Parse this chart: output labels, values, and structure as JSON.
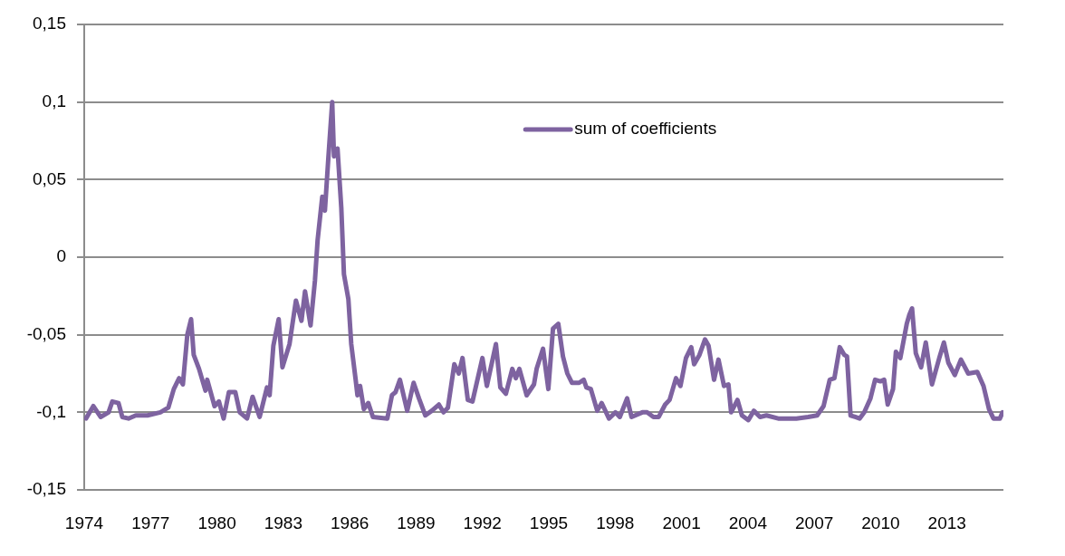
{
  "chart_data": {
    "type": "line",
    "xlim": [
      1974,
      2015.55
    ],
    "xticks": [
      1974,
      1977,
      1980,
      1983,
      1986,
      1989,
      1992,
      1995,
      1998,
      2001,
      2004,
      2007,
      2010,
      2013
    ],
    "ylim": [
      -0.15,
      0.15
    ],
    "yticks": [
      {
        "value": -0.15,
        "label": "-0,15"
      },
      {
        "value": -0.1,
        "label": "-0,1"
      },
      {
        "value": -0.05,
        "label": "-0,05"
      },
      {
        "value": 0,
        "label": "0"
      },
      {
        "value": 0.05,
        "label": "0,05"
      },
      {
        "value": 0.1,
        "label": "0,1"
      },
      {
        "value": 0.15,
        "label": "0,15"
      }
    ],
    "grid": "y",
    "legend": "top right",
    "marker": "none",
    "line_style": "solid",
    "series": [
      {
        "name": "sum of coefficients",
        "color": "#7e63a0",
        "x": [
          1974.08,
          1974.41,
          1974.74,
          1975.1,
          1975.27,
          1975.55,
          1975.72,
          1976.0,
          1976.33,
          1976.86,
          1977.44,
          1977.8,
          1978.05,
          1978.29,
          1978.46,
          1978.66,
          1978.83,
          1978.95,
          1979.19,
          1979.48,
          1979.56,
          1979.89,
          1980.09,
          1980.3,
          1980.54,
          1980.83,
          1981.03,
          1981.36,
          1981.61,
          1981.93,
          1982.26,
          1982.38,
          1982.55,
          1982.79,
          1982.96,
          1983.28,
          1983.57,
          1983.82,
          1983.98,
          1984.23,
          1984.43,
          1984.55,
          1984.76,
          1984.88,
          1985.04,
          1985.21,
          1985.29,
          1985.45,
          1985.62,
          1985.74,
          1985.94,
          1986.07,
          1986.27,
          1986.35,
          1986.47,
          1986.64,
          1986.84,
          1987.05,
          1987.7,
          1987.91,
          1988.07,
          1988.27,
          1988.6,
          1988.89,
          1989.13,
          1989.42,
          1989.71,
          1990.03,
          1990.24,
          1990.44,
          1990.73,
          1990.93,
          1991.1,
          1991.34,
          1991.55,
          1992.0,
          1992.2,
          1992.61,
          1992.81,
          1993.06,
          1993.35,
          1993.51,
          1993.67,
          1994.0,
          1994.33,
          1994.45,
          1994.74,
          1994.98,
          1995.19,
          1995.43,
          1995.64,
          1995.84,
          1996.05,
          1996.37,
          1996.58,
          1996.7,
          1996.9,
          1997.19,
          1997.39,
          1997.72,
          1998.01,
          1998.21,
          1998.54,
          1998.74,
          1999.23,
          1999.44,
          1999.73,
          1999.97,
          2000.26,
          2000.46,
          2000.75,
          2000.95,
          2001.2,
          2001.44,
          2001.57,
          2001.81,
          2002.06,
          2002.22,
          2002.47,
          2002.67,
          2002.92,
          2003.12,
          2003.24,
          2003.53,
          2003.73,
          2004.02,
          2004.27,
          2004.55,
          2004.84,
          2005.37,
          2006.19,
          2006.72,
          2007.13,
          2007.42,
          2007.7,
          2007.91,
          2008.15,
          2008.36,
          2008.48,
          2008.64,
          2008.85,
          2009.05,
          2009.26,
          2009.54,
          2009.75,
          2009.99,
          2010.16,
          2010.32,
          2010.56,
          2010.69,
          2010.89,
          2011.18,
          2011.3,
          2011.42,
          2011.59,
          2011.83,
          2012.04,
          2012.32,
          2012.65,
          2012.86,
          2013.06,
          2013.35,
          2013.63,
          2013.96,
          2014.37,
          2014.65,
          2014.9,
          2015.1,
          2015.39,
          2015.51
        ],
        "values": [
          -0.104,
          -0.096,
          -0.103,
          -0.1,
          -0.093,
          -0.094,
          -0.103,
          -0.104,
          -0.102,
          -0.102,
          -0.1,
          -0.097,
          -0.085,
          -0.078,
          -0.082,
          -0.05,
          -0.04,
          -0.063,
          -0.072,
          -0.086,
          -0.079,
          -0.096,
          -0.093,
          -0.104,
          -0.087,
          -0.087,
          -0.1,
          -0.104,
          -0.09,
          -0.103,
          -0.084,
          -0.089,
          -0.057,
          -0.04,
          -0.071,
          -0.056,
          -0.028,
          -0.041,
          -0.022,
          -0.044,
          -0.015,
          0.011,
          0.039,
          0.03,
          0.065,
          0.1,
          0.065,
          0.07,
          0.032,
          -0.011,
          -0.027,
          -0.056,
          -0.079,
          -0.089,
          -0.083,
          -0.098,
          -0.094,
          -0.103,
          -0.104,
          -0.089,
          -0.087,
          -0.079,
          -0.099,
          -0.081,
          -0.091,
          -0.102,
          -0.099,
          -0.095,
          -0.1,
          -0.097,
          -0.069,
          -0.075,
          -0.065,
          -0.092,
          -0.093,
          -0.065,
          -0.083,
          -0.056,
          -0.084,
          -0.088,
          -0.072,
          -0.078,
          -0.072,
          -0.089,
          -0.082,
          -0.072,
          -0.059,
          -0.085,
          -0.046,
          -0.043,
          -0.064,
          -0.075,
          -0.081,
          -0.081,
          -0.079,
          -0.084,
          -0.085,
          -0.099,
          -0.094,
          -0.104,
          -0.1,
          -0.103,
          -0.091,
          -0.103,
          -0.1,
          -0.1,
          -0.103,
          -0.103,
          -0.095,
          -0.092,
          -0.078,
          -0.083,
          -0.065,
          -0.058,
          -0.069,
          -0.063,
          -0.053,
          -0.057,
          -0.079,
          -0.066,
          -0.083,
          -0.082,
          -0.1,
          -0.092,
          -0.102,
          -0.105,
          -0.099,
          -0.103,
          -0.102,
          -0.104,
          -0.104,
          -0.103,
          -0.102,
          -0.096,
          -0.079,
          -0.078,
          -0.058,
          -0.063,
          -0.064,
          -0.102,
          -0.103,
          -0.104,
          -0.1,
          -0.091,
          -0.079,
          -0.08,
          -0.079,
          -0.095,
          -0.085,
          -0.061,
          -0.065,
          -0.043,
          -0.037,
          -0.033,
          -0.062,
          -0.071,
          -0.055,
          -0.082,
          -0.065,
          -0.055,
          -0.068,
          -0.076,
          -0.066,
          -0.075,
          -0.074,
          -0.083,
          -0.098,
          -0.104,
          -0.104,
          -0.1
        ]
      }
    ]
  }
}
